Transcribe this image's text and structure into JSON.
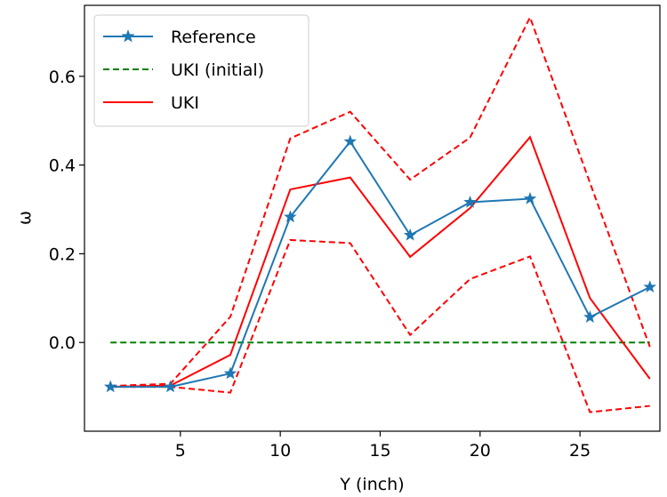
{
  "chart_data": {
    "type": "line",
    "xlabel": "Y (inch)",
    "ylabel": "ω",
    "xlim": [
      0.2,
      29.0
    ],
    "ylim": [
      -0.2,
      0.76
    ],
    "xticks": [
      5,
      10,
      15,
      20,
      25
    ],
    "yticks": [
      0.0,
      0.2,
      0.4,
      0.6
    ],
    "xtick_labels": [
      "5",
      "10",
      "15",
      "20",
      "25"
    ],
    "ytick_labels": [
      "0.0",
      "0.2",
      "0.4",
      "0.6"
    ],
    "grid": false,
    "legend_position": "top-left",
    "x": [
      1.5,
      4.5,
      7.5,
      10.5,
      13.5,
      16.5,
      19.5,
      22.5,
      25.5,
      28.5
    ],
    "series": [
      {
        "name": "Reference",
        "color": "#1f77b4",
        "style": "solid",
        "marker": "star",
        "values": [
          -0.1,
          -0.1,
          -0.07,
          0.283,
          0.453,
          0.242,
          0.316,
          0.324,
          0.057,
          0.125
        ]
      },
      {
        "name": "UKI (initial)",
        "color": "#008000",
        "style": "dashed",
        "values": [
          0.0,
          0.0,
          0.0,
          0.0,
          0.0,
          0.0,
          0.0,
          0.0,
          0.0,
          0.0
        ]
      },
      {
        "name": "UKI",
        "color": "#ff0000",
        "style": "solid",
        "values": [
          -0.1,
          -0.097,
          -0.028,
          0.345,
          0.372,
          0.193,
          0.303,
          0.463,
          0.1,
          -0.082
        ]
      }
    ],
    "bands": [
      {
        "color": "#ff0000",
        "style": "dashed",
        "upper": [
          -0.098,
          -0.093,
          0.058,
          0.46,
          0.52,
          0.367,
          0.462,
          0.733,
          0.36,
          -0.01
        ],
        "lower": [
          -0.1,
          -0.1,
          -0.113,
          0.231,
          0.224,
          0.017,
          0.143,
          0.194,
          -0.157,
          -0.143
        ]
      }
    ]
  }
}
